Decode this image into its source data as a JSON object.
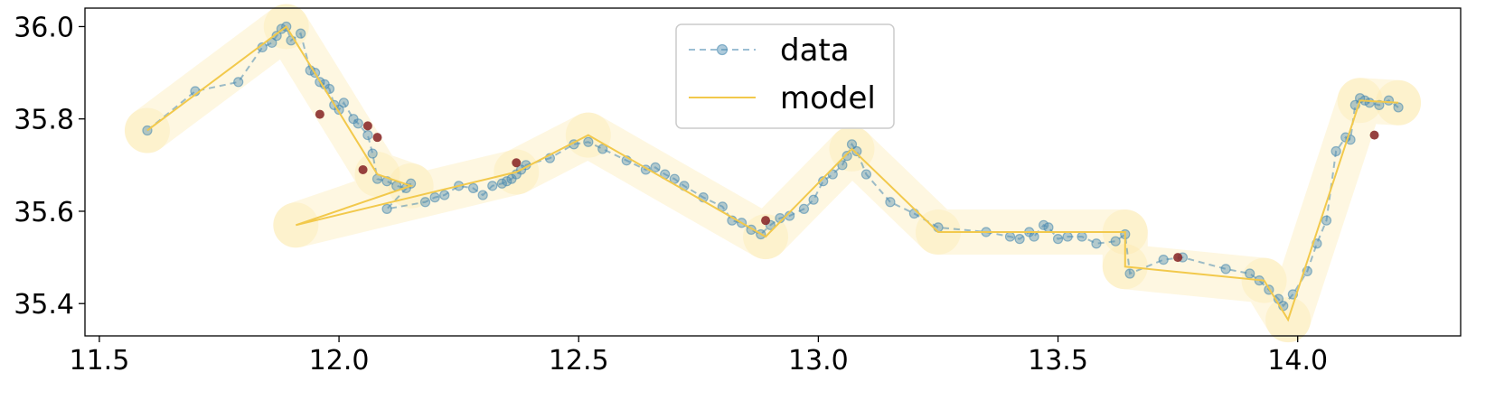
{
  "chart_data": {
    "type": "line",
    "title": "",
    "xlabel": "",
    "ylabel": "",
    "xlim": [
      11.47,
      14.34
    ],
    "ylim": [
      35.33,
      36.04
    ],
    "xticks": [
      11.5,
      12.0,
      12.5,
      13.0,
      13.5,
      14.0
    ],
    "xtick_labels": [
      "11.5",
      "12.0",
      "12.5",
      "13.0",
      "13.5",
      "14.0"
    ],
    "yticks": [
      35.4,
      35.6,
      35.8,
      36.0
    ],
    "ytick_labels": [
      "35.4",
      "35.6",
      "35.8",
      "36.0"
    ],
    "grid": false,
    "legend": {
      "placement": "upper-center",
      "entries": [
        "data",
        "model"
      ]
    },
    "colors": {
      "data": "#4a8ab0",
      "model": "#f2c94c",
      "band": "#fde9a8",
      "outlier": "#8b2c2c"
    },
    "series": [
      {
        "name": "data",
        "style": "dashed-circle-markers",
        "x": [
          11.6,
          11.7,
          11.79,
          11.84,
          11.86,
          11.87,
          11.88,
          11.89,
          11.9,
          11.92,
          11.94,
          11.95,
          11.96,
          11.97,
          11.98,
          11.99,
          12.0,
          12.01,
          12.03,
          12.04,
          12.06,
          12.07,
          12.08,
          12.1,
          12.12,
          12.14,
          12.15,
          12.1,
          12.18,
          12.2,
          12.22,
          12.25,
          12.28,
          12.3,
          12.32,
          12.34,
          12.35,
          12.36,
          12.37,
          12.38,
          12.39,
          12.44,
          12.49,
          12.52,
          12.55,
          12.6,
          12.64,
          12.66,
          12.68,
          12.7,
          12.72,
          12.76,
          12.8,
          12.82,
          12.84,
          12.86,
          12.88,
          12.9,
          12.92,
          12.94,
          12.97,
          12.99,
          13.01,
          13.03,
          13.05,
          13.06,
          13.07,
          13.08,
          13.1,
          13.15,
          13.2,
          13.25,
          13.35,
          13.4,
          13.42,
          13.44,
          13.45,
          13.47,
          13.48,
          13.5,
          13.52,
          13.55,
          13.58,
          13.62,
          13.64,
          13.65,
          13.72,
          13.76,
          13.85,
          13.9,
          13.92,
          13.94,
          13.96,
          13.97,
          13.99,
          14.02,
          14.04,
          14.06,
          14.08,
          14.1,
          14.11,
          14.12,
          14.13,
          14.14,
          14.15,
          14.17,
          14.19,
          14.21
        ],
        "y": [
          35.775,
          35.86,
          35.88,
          35.955,
          35.965,
          35.98,
          35.995,
          36.0,
          35.97,
          35.985,
          35.905,
          35.9,
          35.88,
          35.875,
          35.865,
          35.83,
          35.82,
          35.835,
          35.8,
          35.79,
          35.765,
          35.725,
          35.67,
          35.665,
          35.655,
          35.65,
          35.66,
          35.605,
          35.62,
          35.63,
          35.635,
          35.655,
          35.65,
          35.635,
          35.655,
          35.66,
          35.665,
          35.67,
          35.68,
          35.69,
          35.7,
          35.715,
          35.745,
          35.75,
          35.735,
          35.71,
          35.69,
          35.695,
          35.68,
          35.67,
          35.655,
          35.63,
          35.61,
          35.58,
          35.575,
          35.56,
          35.55,
          35.57,
          35.585,
          35.59,
          35.605,
          35.625,
          35.665,
          35.68,
          35.7,
          35.72,
          35.745,
          35.73,
          35.68,
          35.62,
          35.595,
          35.565,
          35.555,
          35.545,
          35.54,
          35.555,
          35.545,
          35.57,
          35.565,
          35.54,
          35.545,
          35.545,
          35.53,
          35.535,
          35.55,
          35.465,
          35.495,
          35.5,
          35.475,
          35.465,
          35.45,
          35.43,
          35.41,
          35.395,
          35.42,
          35.47,
          35.53,
          35.58,
          35.73,
          35.76,
          35.755,
          35.83,
          35.845,
          35.84,
          35.835,
          35.83,
          35.84,
          35.825
        ]
      },
      {
        "name": "model",
        "style": "solid-line",
        "x": [
          11.6,
          11.89,
          12.08,
          12.15,
          11.91,
          12.37,
          12.52,
          12.89,
          13.07,
          13.25,
          13.64,
          13.64,
          13.93,
          13.98,
          14.13,
          14.21
        ],
        "y": [
          35.775,
          36.0,
          35.68,
          35.655,
          35.57,
          35.685,
          35.765,
          35.545,
          35.735,
          35.555,
          35.555,
          35.48,
          35.45,
          35.365,
          35.84,
          35.835
        ]
      },
      {
        "name": "outliers",
        "style": "filled-circle-markers",
        "x": [
          11.96,
          12.05,
          12.06,
          12.08,
          12.37,
          12.89,
          13.75,
          14.16
        ],
        "y": [
          35.81,
          35.69,
          35.785,
          35.76,
          35.705,
          35.58,
          35.5,
          35.765
        ]
      }
    ]
  }
}
